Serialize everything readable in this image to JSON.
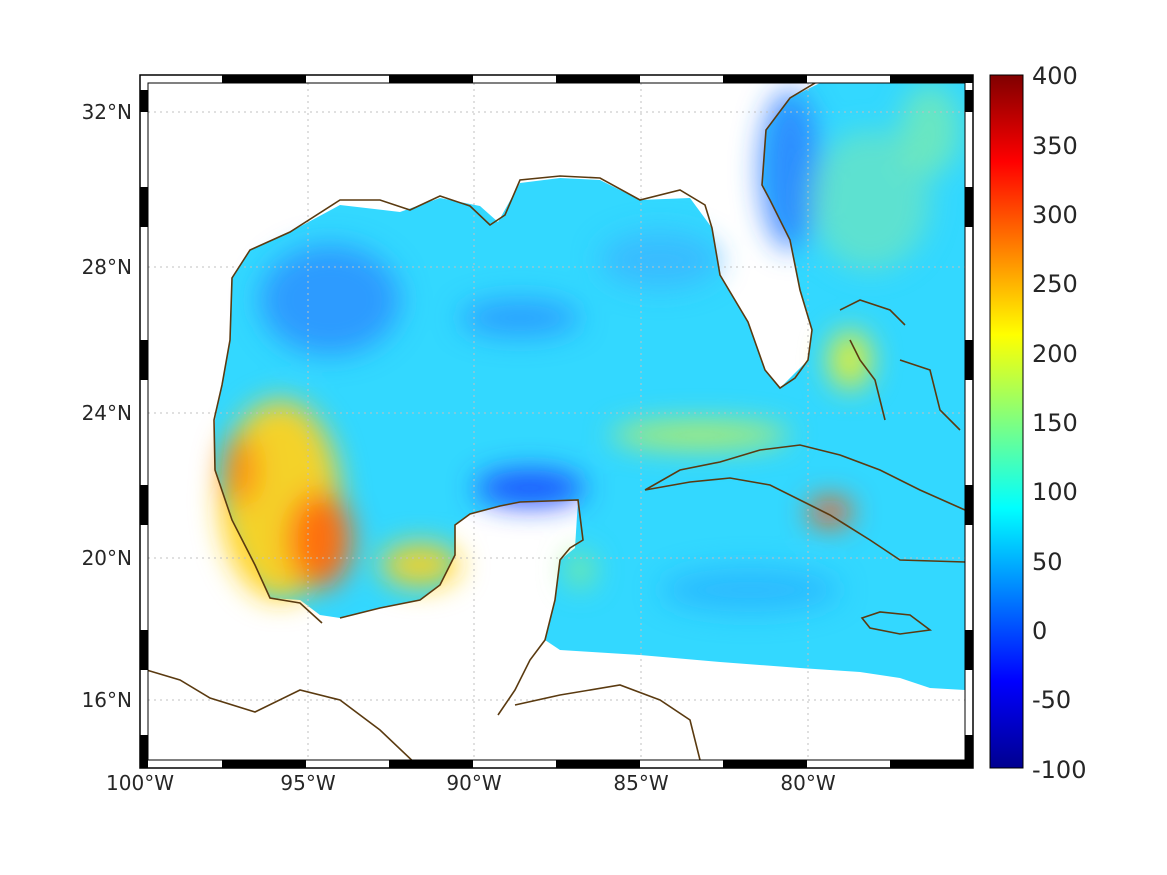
{
  "map": {
    "lon_labels": [
      "100°W",
      "95°W",
      "90°W",
      "85°W",
      "80°W"
    ],
    "lat_labels": [
      "32°N",
      "28°N",
      "24°N",
      "20°N",
      "16°N"
    ],
    "lon_values": [
      -100,
      -95,
      -90,
      -85,
      -80
    ],
    "lat_values": [
      32,
      28,
      24,
      20,
      16
    ],
    "lon_range": [
      -100,
      -75
    ],
    "lat_range": [
      14.2,
      33
    ],
    "grid": "dotted",
    "coast_color": "#5a3a10"
  },
  "colorbar": {
    "labels": [
      "400",
      "350",
      "300",
      "250",
      "200",
      "150",
      "100",
      "50",
      "0",
      "-50",
      "-100"
    ],
    "range": [
      -100,
      400
    ],
    "colormap": "jet",
    "placement": "right"
  }
}
